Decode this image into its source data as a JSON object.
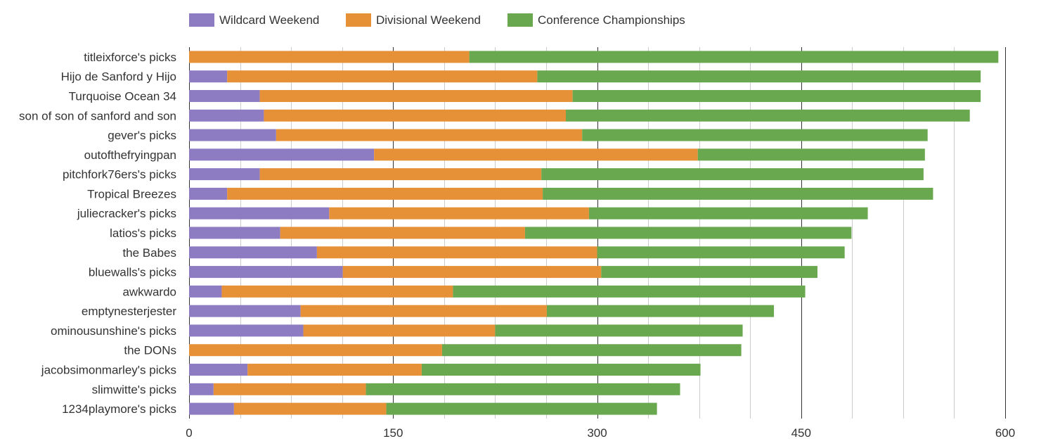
{
  "chart_data": {
    "type": "bar",
    "orientation": "horizontal",
    "stacked": true,
    "legend_position": "top-left",
    "grid": true,
    "xlim": [
      0,
      600
    ],
    "x_ticks": [
      "0",
      "150",
      "300",
      "450",
      "600"
    ],
    "categories": [
      "titleixforce's picks",
      "Hijo de Sanford y Hijo",
      "Turquoise Ocean 34",
      "son of son of sanford and son",
      "gever's picks",
      "outofthefryingpan",
      "pitchfork76ers's picks",
      "Tropical Breezes",
      "juliecracker's picks",
      "latios's picks",
      "the Babes",
      "bluewalls's picks",
      "awkwardo",
      "emptynesterjester",
      "ominousunshine's picks",
      "the DONs",
      "jacobsimonmarley's picks",
      "slimwitte's picks",
      "1234playmore's picks"
    ],
    "series": [
      {
        "name": "Wildcard Weekend",
        "color": "#8e7cc3",
        "values": [
          0,
          28,
          52,
          55,
          64,
          136,
          52,
          28,
          103,
          67,
          94,
          113,
          24,
          82,
          84,
          0,
          43,
          18,
          33
        ]
      },
      {
        "name": "Divisional Weekend",
        "color": "#e69138",
        "values": [
          206,
          228,
          230,
          222,
          225,
          238,
          207,
          232,
          191,
          180,
          206,
          190,
          170,
          181,
          141,
          186,
          128,
          112,
          112
        ]
      },
      {
        "name": "Conference Championships",
        "color": "#6aa84f",
        "values": [
          389,
          326,
          300,
          297,
          254,
          167,
          281,
          287,
          205,
          240,
          182,
          159,
          259,
          167,
          182,
          220,
          205,
          231,
          199
        ]
      }
    ]
  }
}
